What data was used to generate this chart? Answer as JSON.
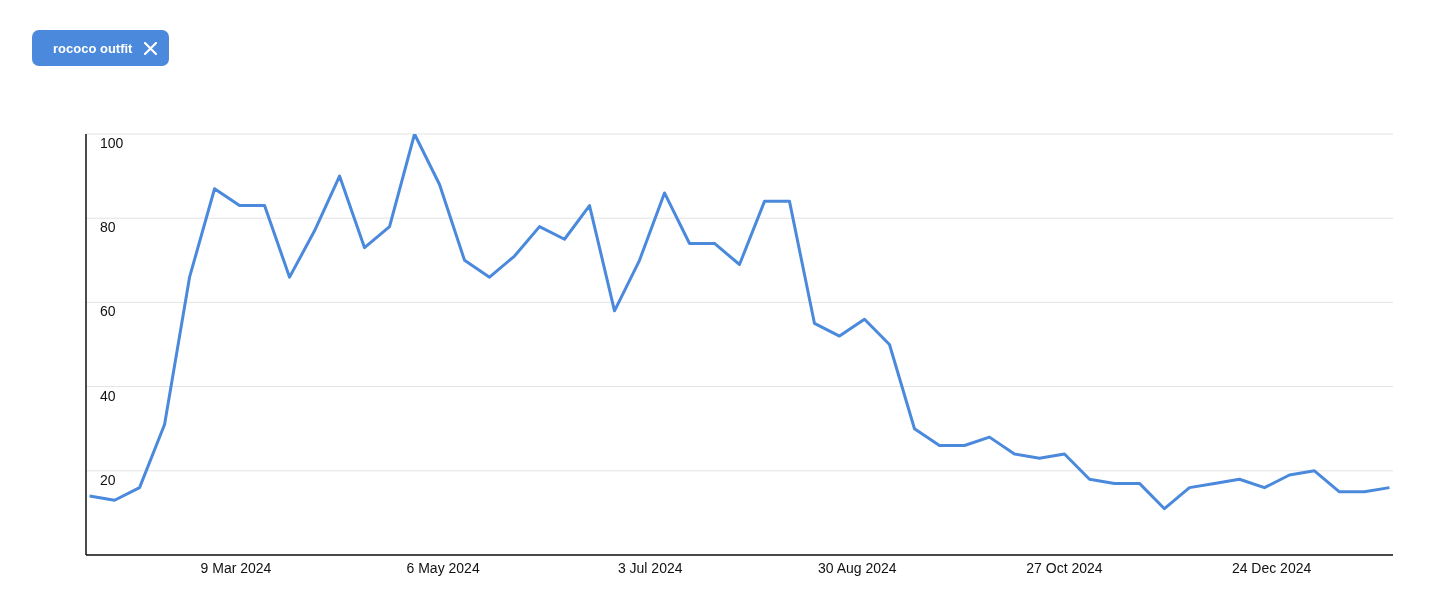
{
  "chart_data": {
    "type": "line",
    "x": [
      "2024-01-28",
      "2024-02-04",
      "2024-02-11",
      "2024-02-18",
      "2024-02-25",
      "2024-03-03",
      "2024-03-10",
      "2024-03-17",
      "2024-03-24",
      "2024-03-31",
      "2024-04-07",
      "2024-04-14",
      "2024-04-21",
      "2024-04-28",
      "2024-05-05",
      "2024-05-12",
      "2024-05-19",
      "2024-05-26",
      "2024-06-02",
      "2024-06-09",
      "2024-06-16",
      "2024-06-23",
      "2024-06-30",
      "2024-07-07",
      "2024-07-14",
      "2024-07-21",
      "2024-07-28",
      "2024-08-04",
      "2024-08-11",
      "2024-08-18",
      "2024-08-25",
      "2024-09-01",
      "2024-09-08",
      "2024-09-15",
      "2024-09-22",
      "2024-09-29",
      "2024-10-06",
      "2024-10-13",
      "2024-10-20",
      "2024-10-27",
      "2024-11-03",
      "2024-11-10",
      "2024-11-17",
      "2024-11-24",
      "2024-12-01",
      "2024-12-08",
      "2024-12-15",
      "2024-12-22",
      "2024-12-29",
      "2025-01-05",
      "2025-01-12",
      "2025-01-19",
      "2025-01-26"
    ],
    "series": [
      {
        "name": "rococo outfit",
        "color": "#4a89dc",
        "values": [
          14,
          13,
          16,
          31,
          66,
          87,
          83,
          83,
          66,
          77,
          90,
          73,
          78,
          100,
          88,
          70,
          66,
          71,
          78,
          75,
          83,
          58,
          70,
          86,
          74,
          74,
          69,
          84,
          84,
          55,
          52,
          56,
          50,
          30,
          26,
          26,
          28,
          24,
          23,
          24,
          18,
          17,
          17,
          11,
          16,
          17,
          18,
          16,
          19,
          20,
          15,
          15,
          16
        ]
      }
    ],
    "xlim": [
      "2024-01-27",
      "2025-01-27"
    ],
    "xticks": [
      {
        "value": "2024-03-09",
        "label": "9 Mar 2024"
      },
      {
        "value": "2024-05-06",
        "label": "6 May 2024"
      },
      {
        "value": "2024-07-03",
        "label": "3 Jul 2024"
      },
      {
        "value": "2024-08-30",
        "label": "30 Aug 2024"
      },
      {
        "value": "2024-10-27",
        "label": "27 Oct 2024"
      },
      {
        "value": "2024-12-24",
        "label": "24 Dec 2024"
      }
    ],
    "ylim": [
      0,
      100
    ],
    "yticks": [
      20,
      40,
      60,
      80,
      100
    ],
    "grid": "y",
    "legend": "top left",
    "marker": "none",
    "line_style": "solid"
  }
}
